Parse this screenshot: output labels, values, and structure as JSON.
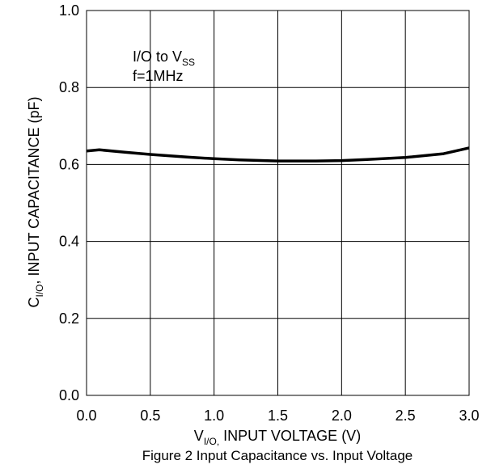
{
  "chart_data": {
    "type": "line",
    "title": "",
    "caption": "Figure 2 Input Capacitance vs. Input Voltage",
    "xlabel": {
      "main": "V",
      "sub": "I/O,",
      "rest": " INPUT VOLTAGE (V)"
    },
    "ylabel": {
      "main": "C",
      "sub": "I/O",
      "rest": ", INPUT CAPACITANCE (pF)"
    },
    "xlim": [
      0.0,
      3.0
    ],
    "ylim": [
      0.0,
      1.0
    ],
    "x_ticks": [
      "0.0",
      "0.5",
      "1.0",
      "1.5",
      "2.0",
      "2.5",
      "3.0"
    ],
    "y_ticks": [
      "0.0",
      "0.2",
      "0.4",
      "0.6",
      "0.8",
      "1.0"
    ],
    "grid": true,
    "annotations": [
      {
        "main": "I/O to V",
        "sub": "SS"
      },
      {
        "main": "f=1MHz"
      }
    ],
    "series": [
      {
        "color": "#000000",
        "x": [
          0.0,
          0.1,
          0.3,
          0.5,
          0.8,
          1.0,
          1.2,
          1.5,
          1.8,
          2.0,
          2.2,
          2.5,
          2.8,
          3.0
        ],
        "y": [
          0.635,
          0.638,
          0.632,
          0.626,
          0.619,
          0.615,
          0.612,
          0.609,
          0.609,
          0.61,
          0.613,
          0.618,
          0.628,
          0.643
        ]
      }
    ]
  }
}
